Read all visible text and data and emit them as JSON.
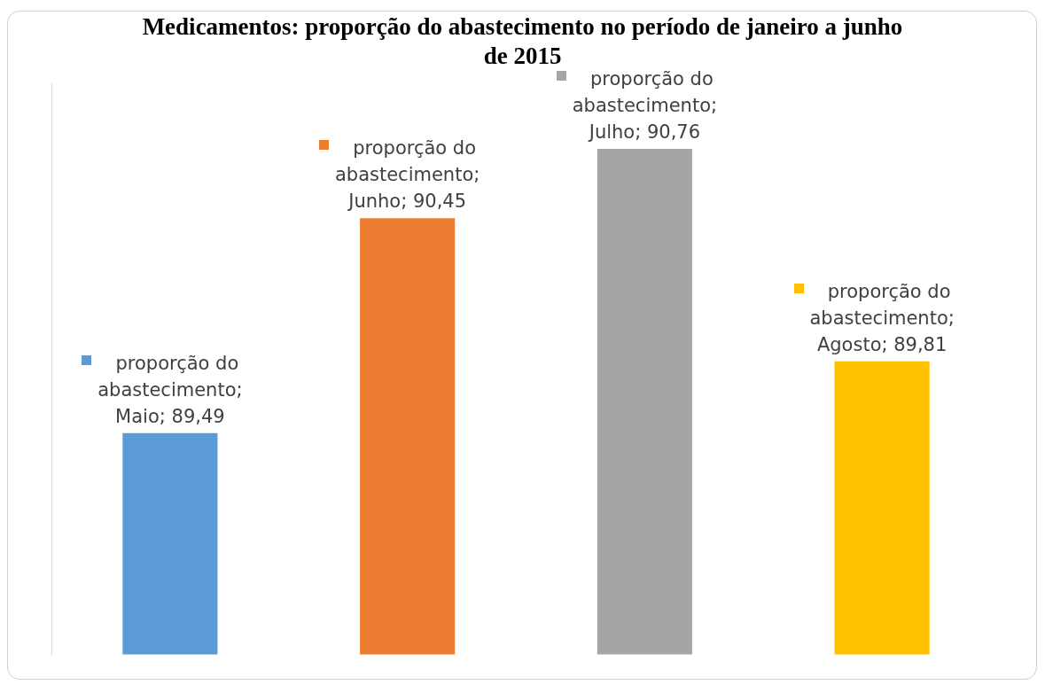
{
  "chart_data": {
    "type": "bar",
    "title": "Medicamentos: proporção do abastecimento no período de janeiro a junho de 2015",
    "categories": [
      null,
      null,
      null,
      null
    ],
    "values": [
      89.49,
      90.45,
      90.76,
      89.81
    ],
    "colors": [
      "#5b9bd5",
      "#ed7d31",
      "#a5a5a5",
      "#ffc000"
    ],
    "value_labels": [
      "proporção do abastecimento; Maio; 89,49",
      "proporção do abastecimento; Junho; 90,45",
      "proporção do abastecimento; Julho; 90,76",
      "proporção do abastecimento; Agosto; 89,81"
    ],
    "ylim": [
      88.5,
      91.05
    ],
    "grid": false,
    "legend": false
  }
}
